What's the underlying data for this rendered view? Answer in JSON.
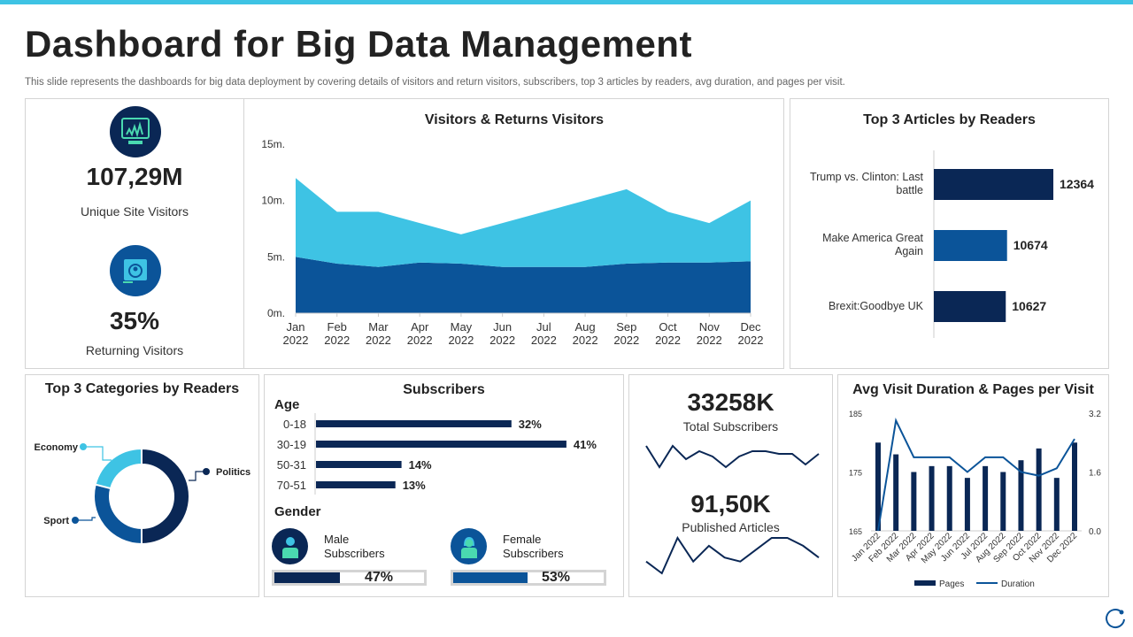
{
  "header": {
    "title": "Dashboard for Big Data Management",
    "subtitle": "This slide represents the dashboards for big data deployment by covering details of visitors and return visitors, subscribers, top 3 articles by readers, avg duration, and pages per visit."
  },
  "kpis": {
    "unique_visitors": {
      "value": "107,29M",
      "label": "Unique Site Visitors",
      "icon": "monitor-chart-icon"
    },
    "returning": {
      "value": "35%",
      "label": "Returning Visitors",
      "icon": "user-browser-icon"
    }
  },
  "colors": {
    "navy": "#0a2755",
    "blue": "#0b5499",
    "cyan": "#3ec3e4",
    "accent_bar": "#3ec3e4"
  },
  "chart_data": [
    {
      "type": "area",
      "stacked": true,
      "title": "Visitors & Returns Visitors",
      "categories": [
        "Jan 2022",
        "Feb 2022",
        "Mar 2022",
        "Apr 2022",
        "May 2022",
        "Jun 2022",
        "Jul 2022",
        "Aug 2022",
        "Sep 2022",
        "Oct 2022",
        "Nov 2022",
        "Dec 2022"
      ],
      "cat_lines": [
        [
          "Jan",
          "2022"
        ],
        [
          "Feb",
          "2022"
        ],
        [
          "Mar",
          "2022"
        ],
        [
          "Apr",
          "2022"
        ],
        [
          "May",
          "2022"
        ],
        [
          "Jun",
          "2022"
        ],
        [
          "Jul",
          "2022"
        ],
        [
          "Aug",
          "2022"
        ],
        [
          "Sep",
          "2022"
        ],
        [
          "Oct",
          "2022"
        ],
        [
          "Nov",
          "2022"
        ],
        [
          "Dec",
          "2022"
        ]
      ],
      "series": [
        {
          "values": [
            5,
            4.4,
            4.1,
            4.5,
            4.4,
            4.1,
            4.1,
            4.1,
            4.4,
            4.5,
            4.5,
            4.6
          ],
          "color": "#0b5499"
        },
        {
          "values": [
            7,
            4.6,
            4.9,
            3.5,
            2.6,
            3.9,
            4.9,
            5.9,
            6.6,
            4.5,
            3.5,
            5.4
          ],
          "color": "#3ec3e4"
        }
      ],
      "ylim": [
        0,
        15
      ],
      "yticks": [
        "0m.",
        "5m.",
        "10m.",
        "15m."
      ],
      "grid": false
    },
    {
      "type": "bar",
      "orientation": "horizontal",
      "title": "Top 3 Articles by Readers",
      "categories": [
        "Trump vs. Clinton: Last battle",
        "Make America Great Again",
        "Brexit:Goodbye UK"
      ],
      "values": [
        12364,
        10674,
        10627
      ],
      "labels": [
        "12364",
        "10674",
        "10627"
      ],
      "colors": [
        "#0a2755",
        "#0b5499",
        "#0a2755"
      ],
      "xlim": [
        8000,
        13000
      ]
    },
    {
      "type": "pie",
      "donut": true,
      "title": "Top 3 Categories by Readers",
      "categories": [
        "Politics",
        "Sport",
        "Economy"
      ],
      "values": [
        50,
        29,
        21
      ],
      "colors": [
        "#0a2755",
        "#0b5499",
        "#3ec3e4"
      ]
    },
    {
      "type": "bar",
      "orientation": "horizontal",
      "title": "Subscribers",
      "group_label": "Age",
      "categories": [
        "0-18",
        "30-19",
        "50-31",
        "70-51"
      ],
      "values": [
        32,
        41,
        14,
        13
      ],
      "labels": [
        "32%",
        "41%",
        "14%",
        "13%"
      ]
    },
    {
      "type": "bar+line",
      "title": "Avg Visit Duration & Pages per Visit",
      "categories": [
        "Jan 2022",
        "Feb 2022",
        "Mar 2022",
        "Apr 2022",
        "May 2022",
        "Jun 2022",
        "Jul 2022",
        "Aug 2022",
        "Sep 2022",
        "Oct 2022",
        "Nov 2022",
        "Dec 2022"
      ],
      "series": [
        {
          "name": "Pages",
          "type": "bar",
          "axis": "left",
          "values": [
            180,
            178,
            175,
            176,
            176,
            174,
            176,
            175,
            177,
            179,
            174,
            180
          ]
        },
        {
          "name": "Duration",
          "type": "line",
          "axis": "right",
          "values": [
            0,
            3.0,
            2.0,
            2.0,
            2.0,
            1.6,
            2.0,
            2.0,
            1.6,
            1.5,
            1.7,
            2.5
          ]
        }
      ],
      "ylim_left": [
        165,
        185
      ],
      "yticks_left": [
        "165",
        "175",
        "185"
      ],
      "ylim_right": [
        0,
        3.2
      ],
      "yticks_right": [
        "0.0",
        "1.6",
        "3.2"
      ],
      "legend": "bottom"
    }
  ],
  "subscribers": {
    "gender_label": "Gender",
    "male": {
      "label1": "Male",
      "label2": "Subscribers",
      "pct": 47,
      "pct_label": "47%"
    },
    "female": {
      "label1": "Female",
      "label2": "Subscribers",
      "pct": 53,
      "pct_label": "53%"
    }
  },
  "totals": {
    "subscribers": {
      "value": "33258K",
      "label": "Total Subscribers",
      "spark": [
        8,
        0,
        8,
        3,
        6,
        4,
        0,
        4,
        6,
        6,
        5,
        5,
        1,
        5
      ]
    },
    "articles": {
      "value": "91,50K",
      "label": "Published Articles",
      "spark": [
        3,
        0,
        9,
        3,
        7,
        4,
        3,
        6,
        9,
        9,
        7,
        4
      ]
    }
  }
}
